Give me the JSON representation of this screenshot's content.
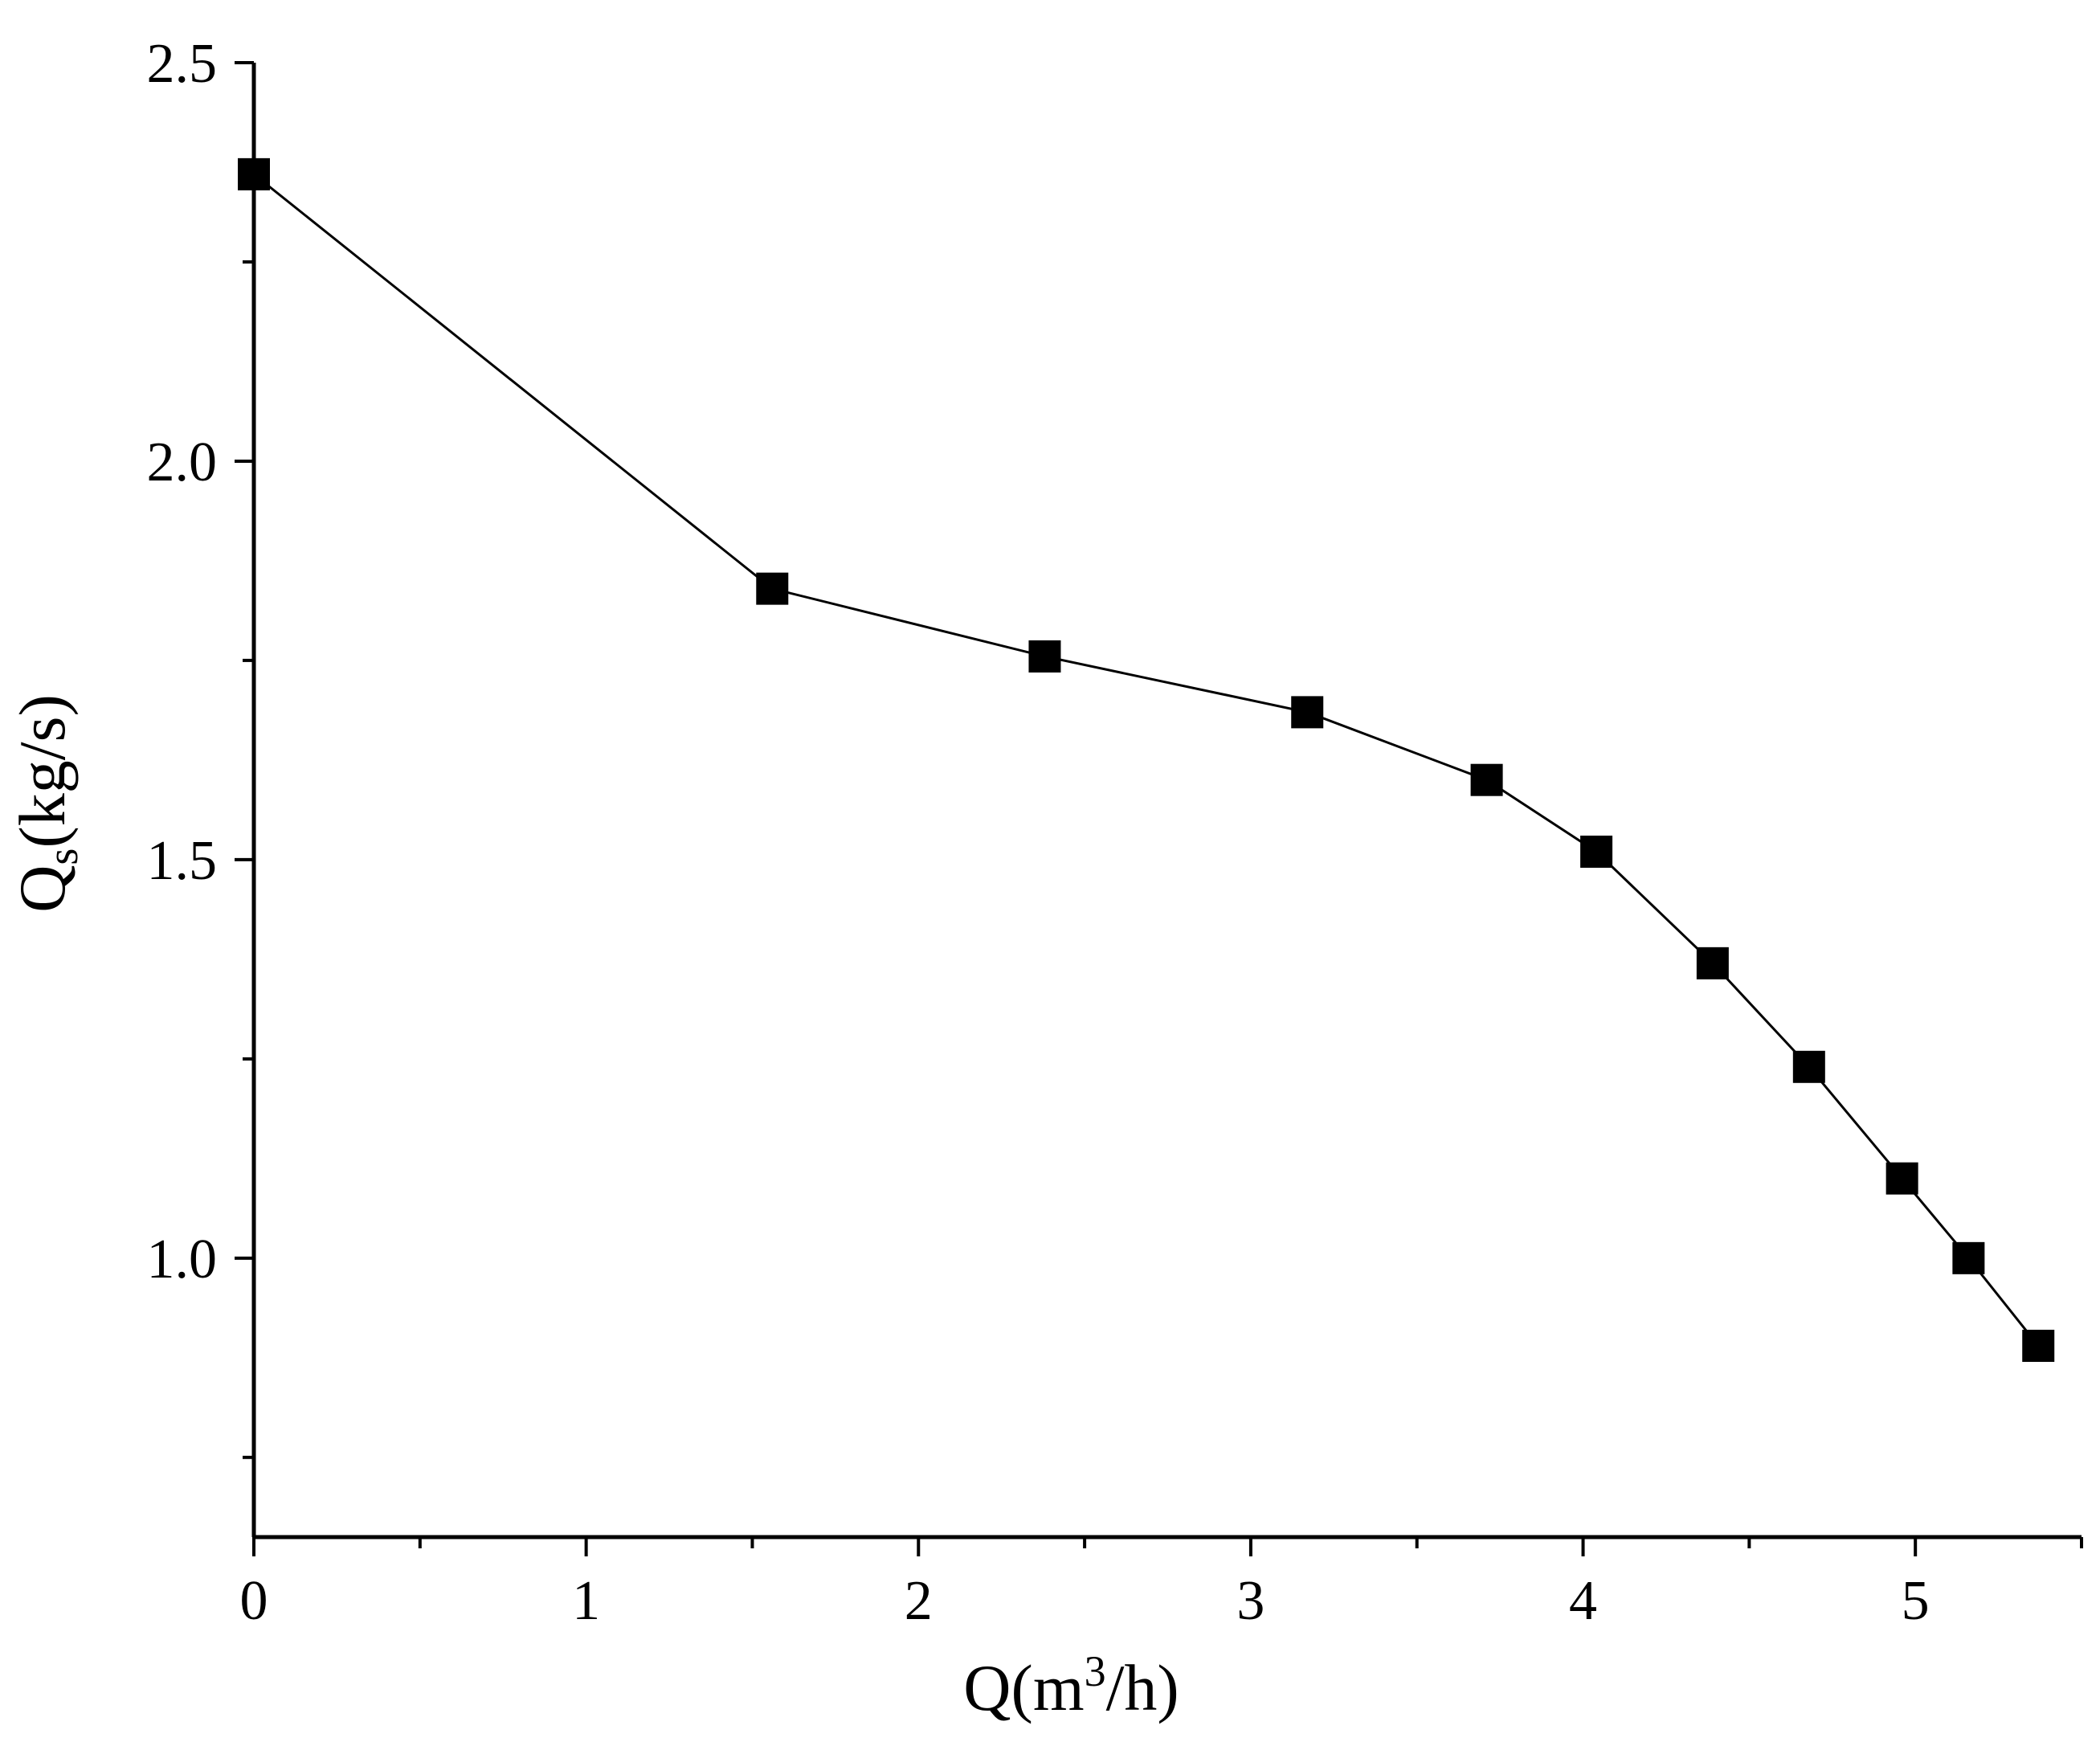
{
  "chart_data": {
    "type": "line",
    "title": "",
    "xlabel": {
      "base": "Q(m",
      "sup": "3",
      "tail": "/h)"
    },
    "ylabel": {
      "base": "Q",
      "sub": "s",
      "tail": "(kg/s)"
    },
    "xlim": [
      0,
      5.5
    ],
    "ylim": [
      0.65,
      2.5
    ],
    "x_ticks": [
      {
        "value": 0,
        "label": "0"
      },
      {
        "value": 1,
        "label": "1"
      },
      {
        "value": 2,
        "label": "2"
      },
      {
        "value": 3,
        "label": "3"
      },
      {
        "value": 4,
        "label": "4"
      },
      {
        "value": 5,
        "label": "5"
      }
    ],
    "x_minor_ticks": [
      0.5,
      1.5,
      2.5,
      3.5,
      4.5,
      5.5
    ],
    "y_ticks": [
      {
        "value": 1.0,
        "label": "1.0"
      },
      {
        "value": 1.5,
        "label": "1.5"
      },
      {
        "value": 2.0,
        "label": "2.0"
      },
      {
        "value": 2.5,
        "label": "2.5"
      }
    ],
    "y_minor_ticks": [
      0.75,
      1.25,
      1.75,
      2.25
    ],
    "grid": false,
    "marker": "square",
    "colors": {
      "line": "#000000",
      "marker": "#000000",
      "axis": "#000000"
    },
    "series": [
      {
        "x": [
          0.0,
          1.56,
          2.38,
          3.17,
          3.71,
          4.04,
          4.39,
          4.68,
          4.96,
          5.16,
          5.37
        ],
        "y": [
          2.36,
          1.84,
          1.755,
          1.685,
          1.6,
          1.51,
          1.37,
          1.24,
          1.1,
          1.0,
          0.89
        ]
      }
    ]
  }
}
